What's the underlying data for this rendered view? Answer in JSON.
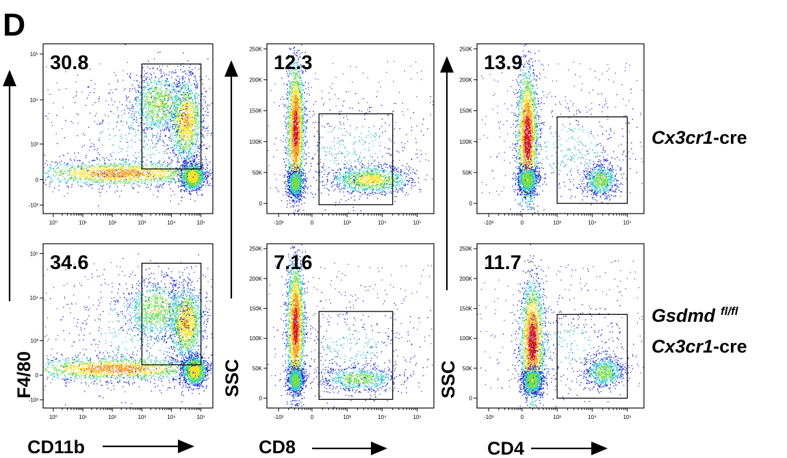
{
  "panel_label": "D",
  "axis_titles": {
    "f4_80": "F4/80",
    "cd11b": "CD11b",
    "ssc_1": "SSC",
    "cd8": "CD8",
    "ssc_2": "SSC",
    "cd4": "CD4"
  },
  "conditions": {
    "row1": {
      "gene": "Cx3cr1",
      "suffix": "-cre"
    },
    "row2": {
      "gene_line1": "Gsdmd",
      "sup_line1": "fl/fl",
      "gene_line2": "Cx3cr1",
      "suffix_line2": "-cre"
    }
  },
  "colors": {
    "density_low": "#1a2acc",
    "density_mid": "#2fc6c8",
    "density_high": "#f6e12a",
    "density_peak": "#d8141c"
  },
  "chart_data": [
    {
      "type": "scatter",
      "plot": "flow-cytometry-density",
      "row": 1,
      "col": 1,
      "x_axis": "CD11b",
      "y_axis": "F4/80",
      "x_ticks": [
        "10⁰",
        "10¹",
        "10²",
        "10³",
        "10⁴",
        "10⁵"
      ],
      "y_ticks": [
        "10⁵",
        "10⁴",
        "10³",
        "0",
        "-10³"
      ],
      "gate_percent": "30.8",
      "gate_x_range": [
        1000,
        100000
      ],
      "gate_y_range": [
        300,
        60000
      ]
    },
    {
      "type": "scatter",
      "plot": "flow-cytometry-density",
      "row": 1,
      "col": 2,
      "x_axis": "CD8",
      "y_axis": "SSC",
      "x_ticks": [
        "-10³",
        "0",
        "10³",
        "10⁴",
        "10⁵"
      ],
      "y_ticks": [
        "250K",
        "200K",
        "150K",
        "100K",
        "50K",
        "0"
      ],
      "gate_percent": "12.3",
      "gate_x_range": [
        200,
        20000
      ],
      "gate_y_range": [
        -2000,
        145000
      ]
    },
    {
      "type": "scatter",
      "plot": "flow-cytometry-density",
      "row": 1,
      "col": 3,
      "x_axis": "CD4",
      "y_axis": "SSC",
      "x_ticks": [
        "-10³",
        "0",
        "10³",
        "10⁴",
        "10⁵"
      ],
      "y_ticks": [
        "250K",
        "200K",
        "150K",
        "100K",
        "50K",
        "0"
      ],
      "gate_percent": "13.9",
      "gate_x_range": [
        1000,
        100000
      ],
      "gate_y_range": [
        0,
        140000
      ]
    },
    {
      "type": "scatter",
      "plot": "flow-cytometry-density",
      "row": 2,
      "col": 1,
      "x_axis": "CD11b",
      "y_axis": "F4/80",
      "x_ticks": [
        "10⁰",
        "10¹",
        "10²",
        "10³",
        "10⁴",
        "10⁵"
      ],
      "y_ticks": [
        "10⁵",
        "10⁴",
        "10³",
        "0",
        "-10³"
      ],
      "gate_percent": "34.6",
      "gate_x_range": [
        1000,
        100000
      ],
      "gate_y_range": [
        300,
        60000
      ]
    },
    {
      "type": "scatter",
      "plot": "flow-cytometry-density",
      "row": 2,
      "col": 2,
      "x_axis": "CD8",
      "y_axis": "SSC",
      "x_ticks": [
        "-10³",
        "0",
        "10³",
        "10⁴",
        "10⁵"
      ],
      "y_ticks": [
        "250K",
        "200K",
        "150K",
        "100K",
        "50K",
        "0"
      ],
      "gate_percent": "7.16",
      "gate_x_range": [
        200,
        20000
      ],
      "gate_y_range": [
        -2000,
        145000
      ]
    },
    {
      "type": "scatter",
      "plot": "flow-cytometry-density",
      "row": 2,
      "col": 3,
      "x_axis": "CD4",
      "y_axis": "SSC",
      "x_ticks": [
        "-10³",
        "0",
        "10³",
        "10⁴",
        "10⁵"
      ],
      "y_ticks": [
        "250K",
        "200K",
        "150K",
        "100K",
        "50K",
        "0"
      ],
      "gate_percent": "11.7",
      "gate_x_range": [
        1000,
        100000
      ],
      "gate_y_range": [
        0,
        140000
      ]
    }
  ]
}
